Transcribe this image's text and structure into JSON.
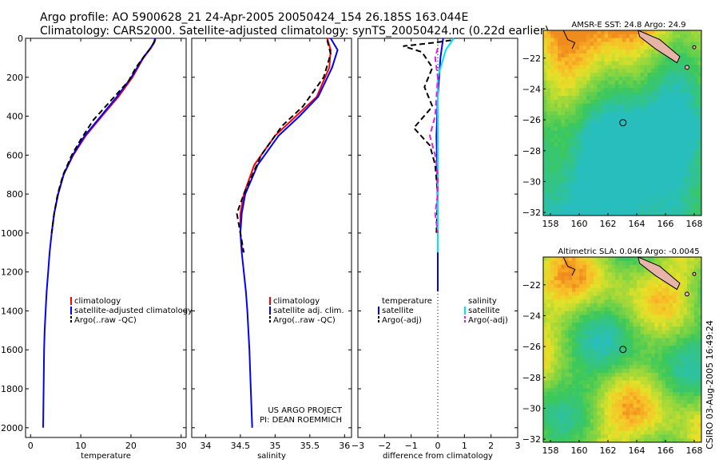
{
  "header": {
    "line1": "Argo profile: AO 5900628_21 24-Apr-2005 20050424_154 26.185S 163.044E",
    "line2": "Climatology: CARS2000. Satellite-adjusted climatology: synTS_20050424.nc (0.22d earlier)"
  },
  "footer": {
    "note": "CSIRO 03-Aug-2005 16:49:24"
  },
  "colors": {
    "clim": "#ff0000",
    "sat": "#0000ff",
    "argo": "#000000",
    "sal_sat": "#00e5ff",
    "sal_argo": "#e020e0",
    "land": "#e8b4a8"
  },
  "chart_data": [
    {
      "type": "line",
      "id": "temperature",
      "xlabel": "temperature",
      "xlim": [
        -1,
        31
      ],
      "ylim": [
        0,
        2050
      ],
      "xticks": [
        0,
        10,
        20,
        30
      ],
      "yticks": [
        0,
        200,
        400,
        600,
        800,
        1000,
        1200,
        1400,
        1600,
        1800,
        2000
      ],
      "legend": [
        "climatology",
        "satellite-adjusted climatology",
        "Argo(..raw -QC)"
      ],
      "legend_pos": "lower-right",
      "series": [
        {
          "name": "climatology",
          "color": "#ff0000",
          "dash": "solid",
          "x": [
            24.9,
            24.7,
            24.0,
            22.5,
            20.3,
            17.5,
            14.2,
            11.0,
            8.5,
            6.6,
            5.5,
            4.7,
            4.2
          ],
          "y": [
            0,
            20,
            50,
            100,
            200,
            300,
            400,
            500,
            600,
            700,
            800,
            900,
            1000
          ]
        },
        {
          "name": "satellite-adjusted climatology",
          "color": "#0000ff",
          "dash": "solid",
          "x": [
            24.8,
            24.6,
            23.9,
            22.4,
            20.1,
            17.2,
            14.0,
            10.8,
            8.4,
            6.6,
            5.5,
            4.7,
            4.2,
            3.8,
            3.5,
            3.2,
            3.0,
            2.8,
            2.7,
            2.6,
            2.5
          ],
          "y": [
            0,
            20,
            50,
            100,
            200,
            300,
            400,
            500,
            600,
            700,
            800,
            900,
            1000,
            1100,
            1200,
            1300,
            1400,
            1500,
            1600,
            1800,
            2000
          ]
        },
        {
          "name": "Argo(..raw -QC)",
          "color": "#000000",
          "dash": "dash",
          "x": [
            24.8,
            24.2,
            23.0,
            21.0,
            19.5,
            16.0,
            12.5,
            10.0,
            8.2,
            6.5,
            5.4,
            4.7,
            4.2
          ],
          "y": [
            10,
            40,
            80,
            150,
            220,
            320,
            420,
            520,
            600,
            700,
            800,
            900,
            1000
          ]
        }
      ]
    },
    {
      "type": "line",
      "id": "salinity",
      "xlabel": "salinity",
      "xlim": [
        33.8,
        36.1
      ],
      "ylim": [
        0,
        2050
      ],
      "xticks": [
        34,
        34.5,
        35,
        35.5,
        36
      ],
      "legend": [
        "climatology",
        "satellite adj. clim.",
        "Argo(..raw -QC)"
      ],
      "legend_pos": "lower-right",
      "series": [
        {
          "name": "climatology",
          "color": "#ff0000",
          "dash": "solid",
          "x": [
            35.75,
            35.8,
            35.78,
            35.6,
            35.3,
            35.0,
            34.7,
            34.55,
            34.5,
            34.5,
            34.53
          ],
          "y": [
            0,
            60,
            150,
            300,
            400,
            500,
            650,
            800,
            900,
            1000,
            1100
          ]
        },
        {
          "name": "satellite adj. clim.",
          "color": "#0000ff",
          "dash": "solid",
          "x": [
            35.8,
            35.9,
            35.82,
            35.62,
            35.35,
            35.05,
            34.75,
            34.57,
            34.52,
            34.5,
            34.52,
            34.55,
            34.58,
            34.6,
            34.63,
            34.65,
            34.67
          ],
          "y": [
            0,
            60,
            150,
            300,
            400,
            500,
            650,
            800,
            900,
            1000,
            1100,
            1200,
            1300,
            1400,
            1600,
            1800,
            2000
          ]
        },
        {
          "name": "Argo(..raw -QC)",
          "color": "#000000",
          "dash": "dash",
          "x": [
            35.75,
            35.8,
            35.7,
            35.4,
            35.1,
            34.8,
            34.55,
            34.45,
            34.5,
            34.55
          ],
          "y": [
            10,
            80,
            200,
            350,
            450,
            600,
            800,
            900,
            1000,
            1100
          ]
        }
      ],
      "annotation": [
        "US ARGO PROJECT",
        "PI: DEAN ROEMMICH"
      ]
    },
    {
      "type": "line",
      "id": "difference",
      "xlabel": "difference from climatology",
      "xlim": [
        -3,
        3
      ],
      "ylim": [
        0,
        2050
      ],
      "xticks": [
        -3,
        -2,
        -1,
        0,
        1,
        2,
        3
      ],
      "legend_left": [
        "temperature",
        "satellite",
        "Argo(-adj)"
      ],
      "legend_right": [
        "salinity",
        "satellite",
        "Argo(-adj)"
      ],
      "legend_pos": "lower",
      "series": [
        {
          "name": "temperature satellite",
          "color": "#0000ff",
          "dash": "solid",
          "x": [
            0.2,
            0.1,
            0.0,
            -0.05,
            -0.02,
            0.0,
            0.0,
            0.0
          ],
          "y": [
            0,
            100,
            300,
            500,
            700,
            900,
            1100,
            1300
          ]
        },
        {
          "name": "temperature Argo(-adj)",
          "color": "#000000",
          "dash": "dash",
          "x": [
            0.5,
            0.0,
            -1.3,
            -0.6,
            -0.2,
            -0.5,
            -0.2,
            -0.9,
            -0.3,
            -0.1,
            0.0,
            -0.05
          ],
          "y": [
            10,
            20,
            40,
            70,
            150,
            250,
            350,
            460,
            550,
            650,
            800,
            1000
          ]
        },
        {
          "name": "salinity satellite",
          "color": "#00e5ff",
          "dash": "solid",
          "x": [
            0.6,
            0.3,
            0.0,
            0.0,
            0.0,
            0.0,
            0.0
          ],
          "y": [
            0,
            60,
            200,
            500,
            700,
            900,
            1100
          ]
        },
        {
          "name": "salinity Argo(-adj)",
          "color": "#e020e0",
          "dash": "dash",
          "x": [
            0.0,
            -0.1,
            0.0,
            -0.1,
            -0.3,
            -0.1,
            0.0,
            0.0,
            -0.1,
            0.0
          ],
          "y": [
            50,
            100,
            200,
            400,
            500,
            600,
            700,
            800,
            900,
            1000
          ]
        }
      ]
    },
    {
      "type": "heatmap",
      "id": "sst-map",
      "title": "AMSR-E SST: 24.8 Argo: 24.9",
      "xlim": [
        157.5,
        168.5
      ],
      "ylim": [
        -32.2,
        -20.2
      ],
      "xticks": [
        158,
        160,
        162,
        164,
        166,
        168
      ],
      "yticks": [
        -22,
        -24,
        -26,
        -28,
        -30,
        -32
      ],
      "marker": {
        "lon": 163.044,
        "lat": -26.185
      }
    },
    {
      "type": "heatmap",
      "id": "sla-map",
      "title": "Altimetric SLA: 0.046 Argo: -0.0045",
      "xlim": [
        157.5,
        168.5
      ],
      "ylim": [
        -32.2,
        -20.2
      ],
      "xticks": [
        158,
        160,
        162,
        164,
        166,
        168
      ],
      "yticks": [
        -22,
        -24,
        -26,
        -28,
        -30,
        -32
      ],
      "marker": {
        "lon": 163.044,
        "lat": -26.185
      }
    }
  ]
}
